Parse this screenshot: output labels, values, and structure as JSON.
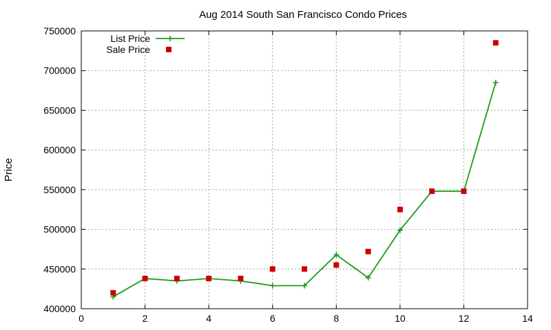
{
  "chart_data": {
    "type": "line",
    "title": "Aug 2014 South San Francisco Condo Prices",
    "xlabel": "",
    "ylabel": "Price",
    "xlim": [
      0,
      14
    ],
    "ylim": [
      400000,
      750000
    ],
    "x_ticks": [
      0,
      2,
      4,
      6,
      8,
      10,
      12,
      14
    ],
    "y_ticks": [
      400000,
      450000,
      500000,
      550000,
      600000,
      650000,
      700000,
      750000
    ],
    "grid": true,
    "legend_position": "top-left",
    "series": [
      {
        "name": "List Price",
        "style": "line-with-plus-markers",
        "color": "#1a9b1a",
        "x": [
          1,
          2,
          3,
          4,
          5,
          6,
          7,
          8,
          9,
          10,
          11,
          12,
          13
        ],
        "y": [
          415000,
          438000,
          435000,
          438000,
          435000,
          429000,
          429000,
          468000,
          439000,
          499000,
          548000,
          548000,
          685000
        ]
      },
      {
        "name": "Sale Price",
        "style": "square-markers",
        "color": "#cc0000",
        "x": [
          1,
          2,
          3,
          4,
          5,
          6,
          7,
          8,
          9,
          10,
          11,
          12,
          13
        ],
        "y": [
          420000,
          438000,
          438000,
          438000,
          438000,
          450000,
          450000,
          455000,
          472000,
          525000,
          548000,
          548000,
          735000
        ]
      }
    ]
  }
}
